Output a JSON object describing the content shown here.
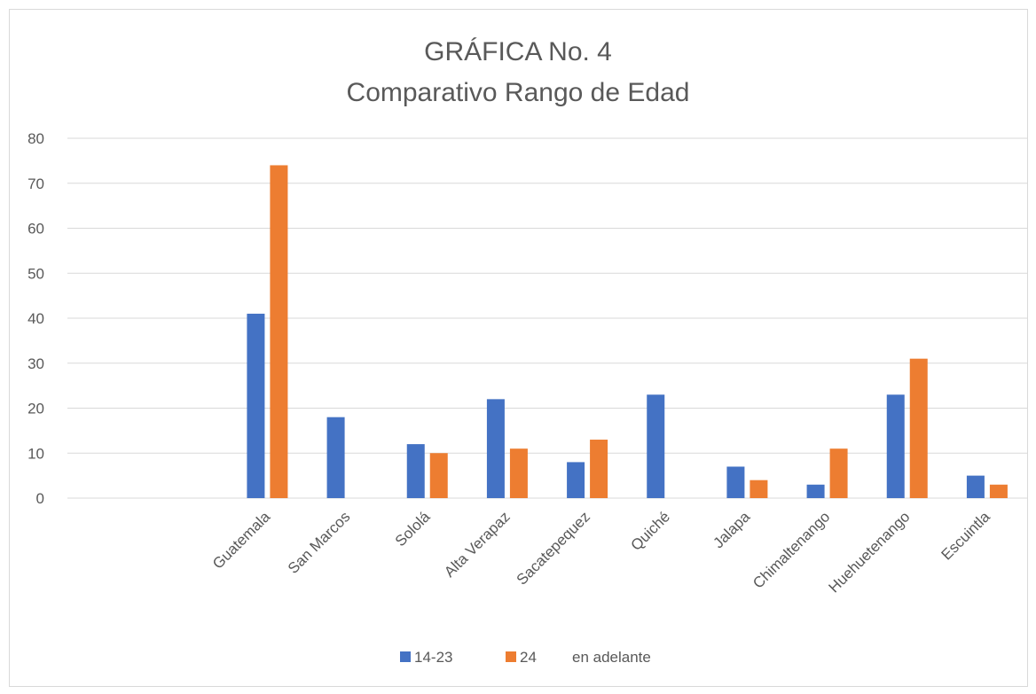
{
  "chart_data": {
    "type": "bar",
    "title": "GRÁFICA No. 4",
    "subtitle": "Comparativo Rango de Edad",
    "categories": [
      "",
      "",
      "Guatemala",
      "San Marcos",
      "Sololá",
      "Alta Verapaz",
      "Sacatepequez",
      "Quiché",
      "Jalapa",
      "Chimaltenango",
      "Huehuetenango",
      "Escuintla"
    ],
    "series": [
      {
        "name": "14-23",
        "color": "#4472c4",
        "values": [
          null,
          null,
          41,
          18,
          12,
          22,
          8,
          23,
          7,
          3,
          23,
          5
        ]
      },
      {
        "name": "24",
        "color": "#ed7d31",
        "values": [
          null,
          null,
          74,
          null,
          10,
          11,
          13,
          null,
          4,
          11,
          31,
          3
        ]
      }
    ],
    "legend_extra_text": "en adelante",
    "ylim": [
      0,
      80
    ],
    "yticks": [
      0,
      10,
      20,
      30,
      40,
      50,
      60,
      70,
      80
    ],
    "grid": true,
    "legend_position": "bottom"
  }
}
